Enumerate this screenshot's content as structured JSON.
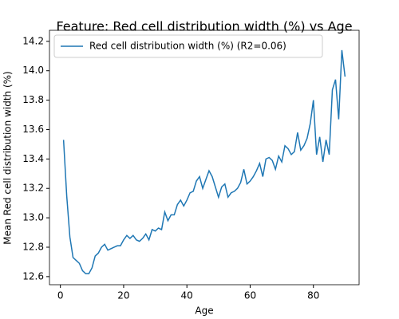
{
  "chart_data": {
    "type": "line",
    "title": "Feature: Red cell distribution width (%) vs Age",
    "xlabel": "Age",
    "ylabel": "Mean Red cell distribution width (%)",
    "x": [
      1,
      2,
      3,
      4,
      5,
      6,
      7,
      8,
      9,
      10,
      11,
      12,
      13,
      14,
      15,
      16,
      17,
      18,
      19,
      20,
      21,
      22,
      23,
      24,
      25,
      26,
      27,
      28,
      29,
      30,
      31,
      32,
      33,
      34,
      35,
      36,
      37,
      38,
      39,
      40,
      41,
      42,
      43,
      44,
      45,
      46,
      47,
      48,
      49,
      50,
      51,
      52,
      53,
      54,
      55,
      56,
      57,
      58,
      59,
      60,
      61,
      62,
      63,
      64,
      65,
      66,
      67,
      68,
      69,
      70,
      71,
      72,
      73,
      74,
      75,
      76,
      77,
      78,
      79,
      80,
      81,
      82,
      83,
      84,
      85,
      86,
      87,
      88,
      89,
      90
    ],
    "series": [
      {
        "name": "Red cell distribution width (%) (R2=0.06)",
        "color": "#1f77b4",
        "values": [
          13.53,
          13.15,
          12.87,
          12.73,
          12.71,
          12.69,
          12.64,
          12.62,
          12.62,
          12.66,
          12.74,
          12.76,
          12.8,
          12.82,
          12.78,
          12.79,
          12.8,
          12.81,
          12.81,
          12.85,
          12.88,
          12.86,
          12.88,
          12.85,
          12.84,
          12.86,
          12.89,
          12.85,
          12.92,
          12.91,
          12.93,
          12.92,
          13.04,
          12.98,
          13.02,
          13.02,
          13.09,
          13.12,
          13.08,
          13.12,
          13.17,
          13.18,
          13.25,
          13.28,
          13.2,
          13.26,
          13.32,
          13.28,
          13.21,
          13.14,
          13.21,
          13.23,
          13.14,
          13.17,
          13.18,
          13.2,
          13.24,
          13.33,
          13.23,
          13.25,
          13.28,
          13.32,
          13.37,
          13.28,
          13.4,
          13.41,
          13.39,
          13.33,
          13.42,
          13.38,
          13.49,
          13.47,
          13.43,
          13.45,
          13.58,
          13.46,
          13.49,
          13.54,
          13.64,
          13.8,
          13.43,
          13.55,
          13.38,
          13.53,
          13.43,
          13.87,
          13.94,
          13.67,
          14.14,
          13.96
        ]
      }
    ],
    "xlim": [
      -3.45,
      94.45
    ],
    "xticks": [
      0,
      20,
      40,
      60,
      80
    ],
    "ylim": [
      12.545,
      14.275
    ],
    "yticks": [
      12.6,
      12.8,
      {
        "value": 13,
        "label": "13.0"
      },
      13.2,
      13.4,
      13.6,
      13.8,
      {
        "value": 14,
        "label": "14.0"
      },
      14.2
    ],
    "legend": "upper left",
    "grid": false
  }
}
